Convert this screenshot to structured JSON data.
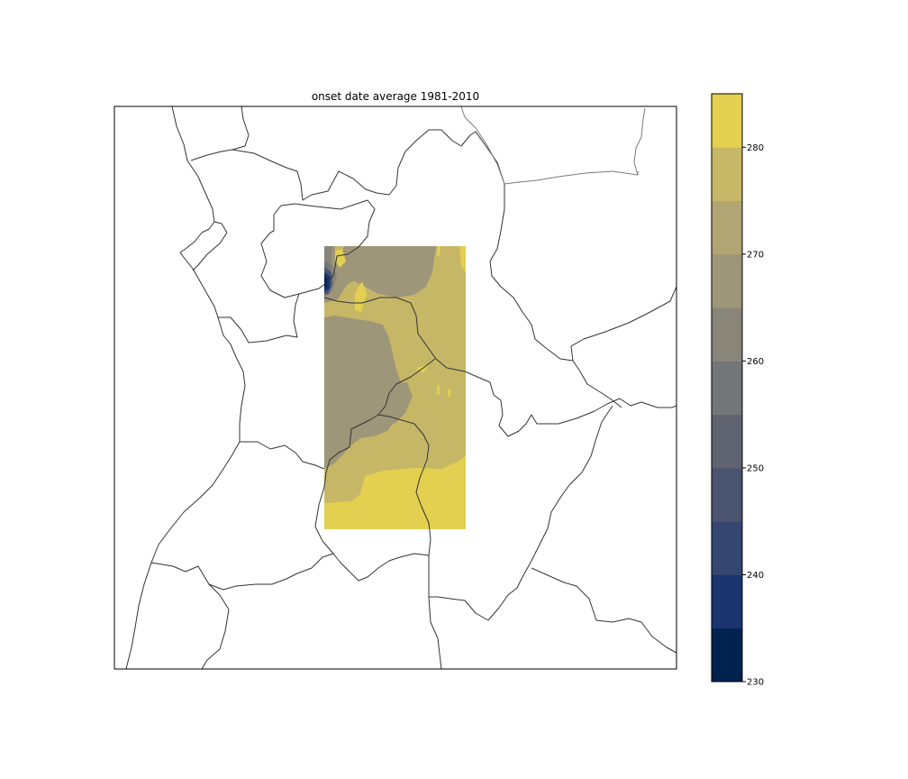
{
  "figure": {
    "title": "onset date average 1981-2010"
  },
  "map": {
    "type": "filled-contour map",
    "field_extent": "rectangular sub-region in centre of map frame",
    "boundary_color": "#333333",
    "secondary_boundary_color": "#7a7a7a"
  },
  "colorbar": {
    "colormap": "cividis",
    "vmin": 230,
    "vmax": 285,
    "level_step": 5,
    "ticks": [
      230,
      240,
      250,
      260,
      270,
      280
    ],
    "tick_labels": [
      "230",
      "240",
      "250",
      "260",
      "270",
      "280"
    ],
    "levels": [
      {
        "from": 230,
        "to": 235,
        "color": "#00224e"
      },
      {
        "from": 235,
        "to": 240,
        "color": "#19346f"
      },
      {
        "from": 240,
        "to": 245,
        "color": "#354670"
      },
      {
        "from": 245,
        "to": 250,
        "color": "#4b546f"
      },
      {
        "from": 250,
        "to": 255,
        "color": "#5f6470"
      },
      {
        "from": 255,
        "to": 260,
        "color": "#747576"
      },
      {
        "from": 260,
        "to": 265,
        "color": "#898679"
      },
      {
        "from": 265,
        "to": 270,
        "color": "#9e9679"
      },
      {
        "from": 270,
        "to": 275,
        "color": "#b1a573"
      },
      {
        "from": 275,
        "to": 280,
        "color": "#c6b767"
      },
      {
        "from": 280,
        "to": 285,
        "color": "#e3cf50"
      }
    ]
  },
  "field_regions": {
    "dominant": {
      "value_range": [
        275,
        280
      ],
      "color": "#c6b767"
    },
    "south": {
      "value_range": [
        280,
        285
      ],
      "color": "#e3cf50"
    },
    "west_central": {
      "value_range": [
        265,
        270
      ],
      "color": "#9e9679"
    },
    "north": {
      "value_range": [
        265,
        270
      ],
      "color": "#9e9679"
    },
    "northwest_edge_minimum": {
      "value_range": [
        230,
        235
      ],
      "color": "#00224e"
    }
  }
}
